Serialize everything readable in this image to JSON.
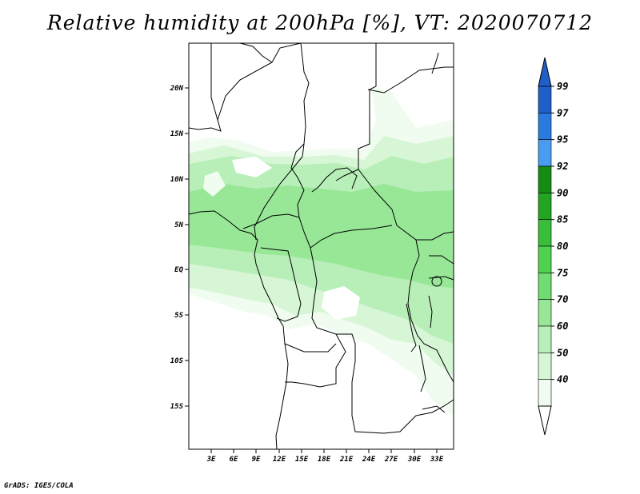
{
  "title": "Relative humidity at 200hPa [%], VT: 2020070712",
  "credit": "GrADS: IGES/COLA",
  "map": {
    "lat_labels": [
      "20N",
      "15N",
      "10N",
      "5N",
      "EQ",
      "5S",
      "10S",
      "15S"
    ],
    "lon_labels": [
      "3E",
      "6E",
      "9E",
      "12E",
      "15E",
      "18E",
      "21E",
      "24E",
      "27E",
      "30E",
      "33E"
    ]
  },
  "colorbar": {
    "labels": [
      "99",
      "97",
      "95",
      "92",
      "90",
      "85",
      "80",
      "75",
      "70",
      "60",
      "50",
      "40"
    ],
    "colors": [
      "#1f5fc8",
      "#2a7ae0",
      "#4a9cf0",
      "#148c14",
      "#22a622",
      "#38be38",
      "#4fd34f",
      "#71dc71",
      "#97e797",
      "#b8efb8",
      "#d6f6d6",
      "#effcef"
    ],
    "top_arrow_color": "#1f5fc8",
    "bottom_arrow_color": "#ffffff"
  }
}
